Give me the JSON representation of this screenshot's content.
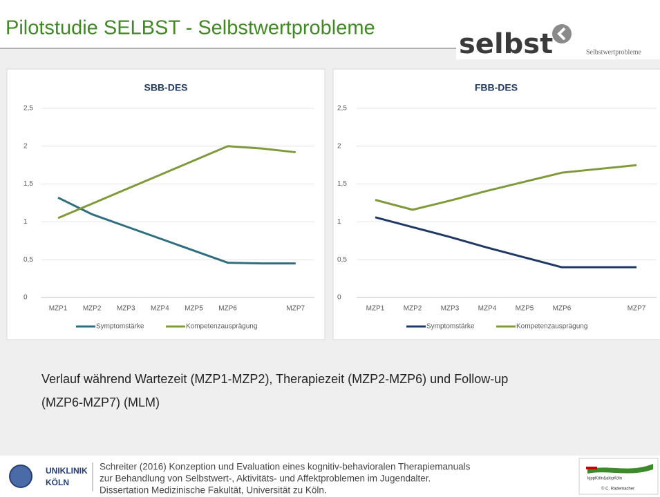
{
  "title": "Pilotstudie SELBST - Selbstwertprobleme",
  "logo": {
    "word": "selbst",
    "tagline": "Selbstwertprobleme"
  },
  "chart_data": [
    {
      "type": "line",
      "title": "SBB-DES",
      "categories": [
        "MZP1",
        "MZP2",
        "MZP3",
        "MZP4",
        "MZP5",
        "MZP6",
        null,
        "MZP7"
      ],
      "series": [
        {
          "name": "Symptomstärke",
          "color": "#2e6e7e",
          "values": [
            1.32,
            1.1,
            0.94,
            0.78,
            0.62,
            0.46,
            0.45,
            0.45
          ]
        },
        {
          "name": "Kompetenzausprägung",
          "color": "#7f9a3a",
          "values": [
            1.05,
            1.24,
            1.43,
            1.62,
            1.81,
            2.0,
            1.97,
            1.92
          ]
        }
      ],
      "ylim": [
        0,
        2.5
      ],
      "yticks": [
        0,
        {
          "value": 0.5,
          "label": "0,5"
        },
        1,
        {
          "value": 1.5,
          "label": "1,5"
        },
        2,
        {
          "value": 2.5,
          "label": "2,5"
        }
      ],
      "grid": true,
      "legend": "bottom"
    },
    {
      "type": "line",
      "title": "FBB-DES",
      "categories": [
        "MZP1",
        "MZP2",
        "MZP3",
        "MZP4",
        "MZP5",
        "MZP6",
        null,
        "MZP7"
      ],
      "series": [
        {
          "name": "Symptomstärke",
          "color": "#1f3864",
          "values": [
            1.06,
            0.93,
            0.8,
            0.66,
            0.53,
            0.4,
            0.4,
            0.4
          ]
        },
        {
          "name": "Kompetenzausprägung",
          "color": "#7f9a3a",
          "values": [
            1.29,
            1.16,
            1.28,
            1.41,
            1.53,
            1.65,
            1.7,
            1.75
          ]
        }
      ],
      "ylim": [
        0,
        2.5
      ],
      "yticks": [
        0,
        {
          "value": 0.5,
          "label": "0,5"
        },
        1,
        {
          "value": 1.5,
          "label": "1,5"
        },
        2,
        {
          "value": 2.5,
          "label": "2,5"
        }
      ],
      "grid": true,
      "legend": "bottom"
    }
  ],
  "caption": [
    "Verlauf während Wartezeit (MZP1-MZP2), Therapiezeit (MZP2-MZP6) und Follow-up",
    "(MZP6-MZP7) (MLM)"
  ],
  "footer": {
    "logo_left": [
      "UNIKLINIK",
      "KÖLN"
    ],
    "citation": [
      "Schreiter (2016) Konzeption und Evaluation eines kognitiv-behavioralen Therapiemanuals",
      "zur Behandlung von Selbstwert-, Aktivitäts- und Affektproblemen im Jugendalter.",
      "Dissertation Medizinische Fakultät, Universität zu Köln."
    ],
    "logo_right": [
      "kjppKöln&akipKöln",
      "© C. Rademacher"
    ]
  }
}
